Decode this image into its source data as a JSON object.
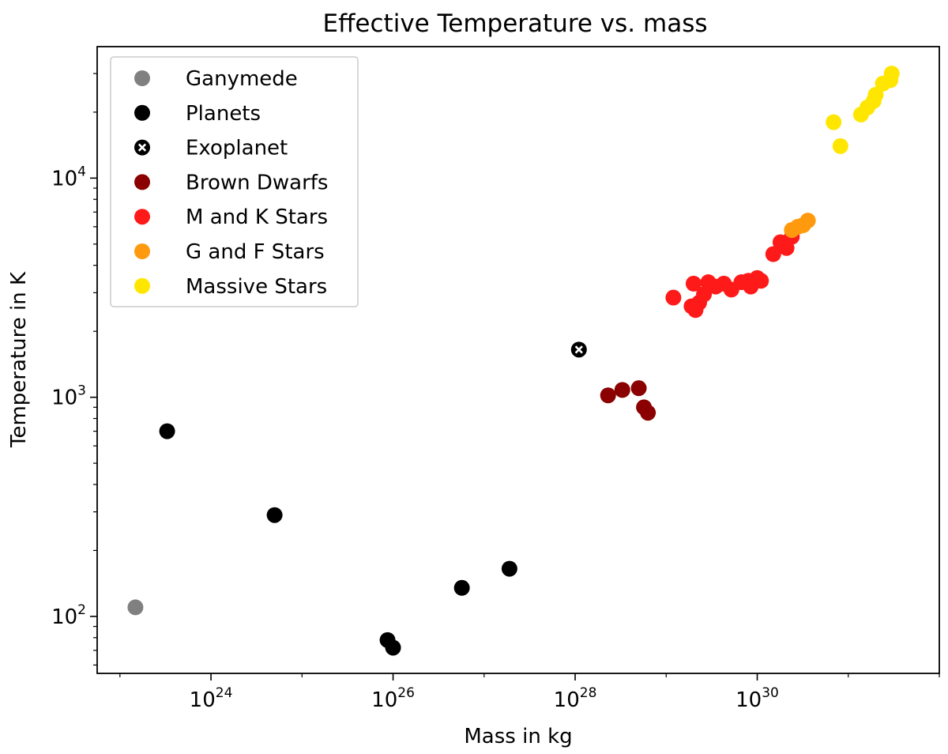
{
  "chart_data": {
    "type": "scatter",
    "title": "Effective Temperature vs. mass",
    "xlabel": "Mass in kg",
    "ylabel": "Temperature in K",
    "xscale": "log",
    "yscale": "log",
    "xlim_log10": [
      22.75,
      32.0
    ],
    "ylim_log10": [
      1.74,
      4.6
    ],
    "x_ticks": [
      {
        "base": "10",
        "exp": "24",
        "log10": 24
      },
      {
        "base": "10",
        "exp": "26",
        "log10": 26
      },
      {
        "base": "10",
        "exp": "28",
        "log10": 28
      },
      {
        "base": "10",
        "exp": "30",
        "log10": 30
      }
    ],
    "y_ticks": [
      {
        "base": "10",
        "exp": "2",
        "log10": 2
      },
      {
        "base": "10",
        "exp": "3",
        "log10": 3
      },
      {
        "base": "10",
        "exp": "4",
        "log10": 4
      }
    ],
    "legend_position": "top-left",
    "series": [
      {
        "name": "Ganymede",
        "color": "#808080",
        "marker": "circle",
        "points": [
          [
            1.48e+23,
            110
          ]
        ]
      },
      {
        "name": "Planets",
        "color": "#000000",
        "marker": "circle",
        "points": [
          [
            3.3e+23,
            700
          ],
          [
            5e+24,
            290
          ],
          [
            8.7e+25,
            78
          ],
          [
            1e+26,
            72
          ],
          [
            5.7e+26,
            135
          ],
          [
            1.9e+27,
            165
          ]
        ]
      },
      {
        "name": "Exoplanet",
        "color": "#000000",
        "marker": "circle-x",
        "points": [
          [
            1.1e+28,
            1650
          ]
        ]
      },
      {
        "name": "Brown Dwarfs",
        "color": "#8b0000",
        "marker": "circle",
        "points": [
          [
            2.3e+28,
            1020
          ],
          [
            3.3e+28,
            1080
          ],
          [
            5e+28,
            1100
          ],
          [
            5.7e+28,
            900
          ],
          [
            6.3e+28,
            850
          ]
        ]
      },
      {
        "name": "M and K Stars",
        "color": "#ff1a1a",
        "marker": "circle",
        "points": [
          [
            1.2e+29,
            2850
          ],
          [
            1.9e+29,
            2600
          ],
          [
            2.1e+29,
            2500
          ],
          [
            2.3e+29,
            2700
          ],
          [
            2.6e+29,
            2950
          ],
          [
            2e+29,
            3300
          ],
          [
            2.9e+29,
            3350
          ],
          [
            3.5e+29,
            3200
          ],
          [
            4.3e+29,
            3300
          ],
          [
            5.2e+29,
            3100
          ],
          [
            6.7e+29,
            3350
          ],
          [
            8e+29,
            3400
          ],
          [
            8.5e+29,
            3200
          ],
          [
            1e+30,
            3500
          ],
          [
            1.1e+30,
            3400
          ],
          [
            1.5e+30,
            4500
          ],
          [
            1.8e+30,
            5100
          ],
          [
            2.1e+30,
            4800
          ],
          [
            2.4e+30,
            5400
          ]
        ]
      },
      {
        "name": "G and F Stars",
        "color": "#ff9a0f",
        "marker": "circle",
        "points": [
          [
            2.4e+30,
            5800
          ],
          [
            2.8e+30,
            6000
          ],
          [
            3.2e+30,
            6100
          ],
          [
            3.6e+30,
            6400
          ]
        ]
      },
      {
        "name": "Massive Stars",
        "color": "#ffe600",
        "marker": "circle",
        "points": [
          [
            6.9e+30,
            18000
          ],
          [
            8.2e+30,
            14000
          ],
          [
            1.38e+31,
            19500
          ],
          [
            1.62e+31,
            21000
          ],
          [
            1.9e+31,
            22500
          ],
          [
            2e+31,
            24000
          ],
          [
            2.4e+31,
            27000
          ],
          [
            2.9e+31,
            28000
          ],
          [
            3e+31,
            30000
          ]
        ]
      }
    ]
  }
}
